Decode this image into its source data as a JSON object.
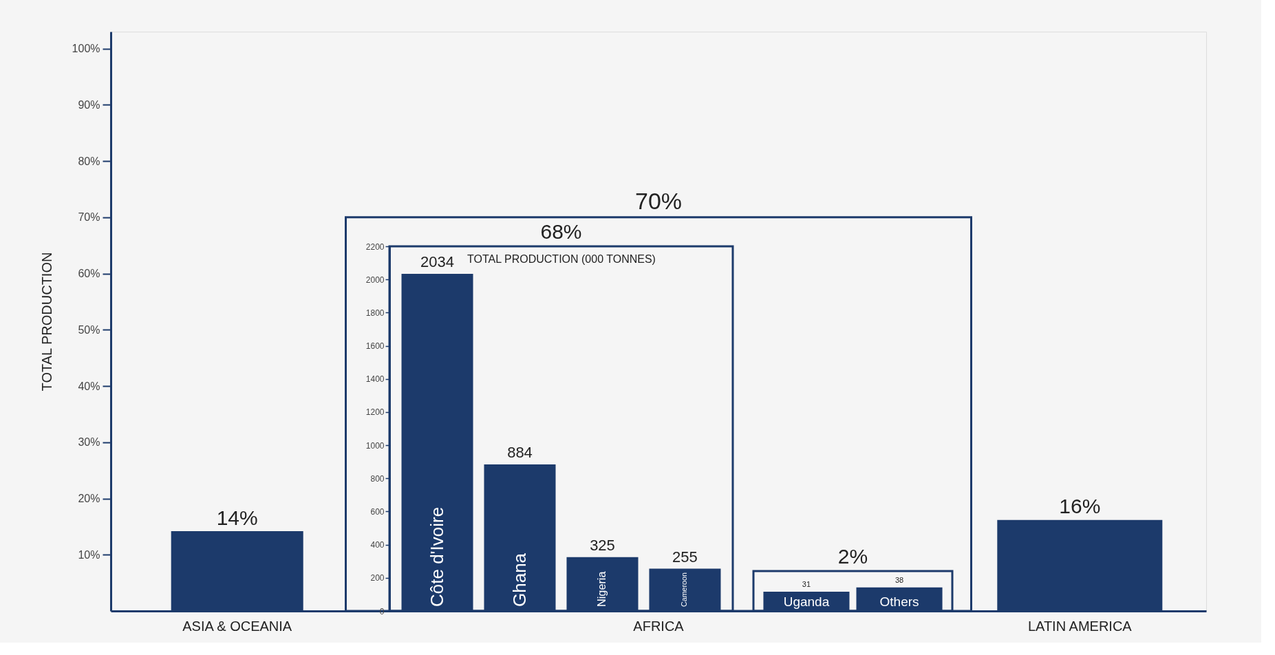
{
  "chart_data": [
    {
      "type": "bar",
      "categories": [
        "ASIA & OCEANIA",
        "AFRICA",
        "LATIN AMERICA"
      ],
      "values": [
        14,
        70,
        16
      ],
      "value_labels": [
        "14%",
        "70%",
        "16%"
      ],
      "color": "#1c3a6b",
      "colors": [
        "#1c3a6b",
        "#f5f5f5",
        "#1c3a6b"
      ],
      "ylabel": "TOTAL PRODUCTION",
      "ylim": [
        0,
        103
      ],
      "yticks": [
        {
          "value": 10,
          "label": "10%"
        },
        {
          "value": 20,
          "label": "20%"
        },
        {
          "value": 30,
          "label": "30%"
        },
        {
          "value": 40,
          "label": "40%"
        },
        {
          "value": 50,
          "label": "50%"
        },
        {
          "value": 60,
          "label": "60%"
        },
        {
          "value": 70,
          "label": "70%"
        },
        {
          "value": 80,
          "label": "80%"
        },
        {
          "value": 90,
          "label": "90%"
        },
        {
          "value": 100,
          "label": "100%"
        }
      ]
    },
    {
      "type": "bar",
      "categories": [
        "Côte d'Ivoire",
        "Ghana",
        "Nigeria",
        "Cameroon"
      ],
      "values": [
        2034,
        884,
        325,
        255
      ],
      "data_labels": true,
      "color": "#1c3a6b",
      "ylabel": "TOTAL PRODUCTION (000 TONNES)",
      "ylim": [
        0,
        2200
      ],
      "yticks": [
        0,
        200,
        400,
        600,
        800,
        1000,
        1200,
        1400,
        1600,
        1800,
        2000,
        2200
      ],
      "annotations": [
        "68%"
      ]
    },
    {
      "type": "bar",
      "categories": [
        "Uganda",
        "Others"
      ],
      "values": [
        31,
        38
      ],
      "data_labels": true,
      "color": "#1c3a6b",
      "tick_labels": "x",
      "annotations": [
        "2%"
      ]
    }
  ]
}
